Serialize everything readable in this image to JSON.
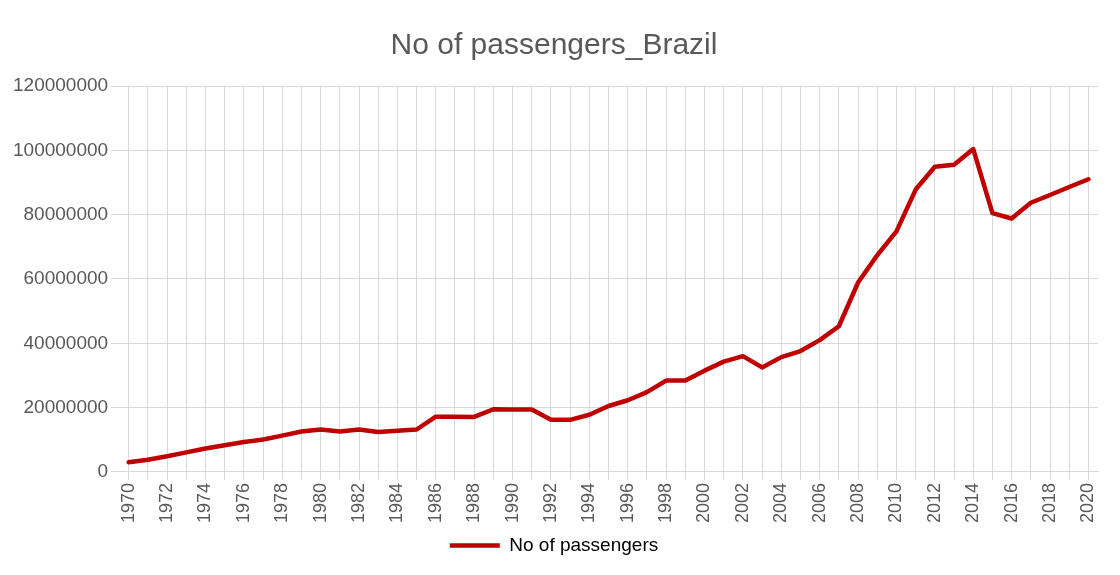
{
  "chart_data": {
    "type": "line",
    "title": "No of passengers_Brazil",
    "categories": [
      "1970",
      null,
      "1972",
      null,
      "1974",
      null,
      "1976",
      null,
      "1978",
      null,
      "1980",
      null,
      "1982",
      null,
      "1984",
      null,
      "1986",
      null,
      "1988",
      null,
      "1990",
      null,
      "1992",
      null,
      "1994",
      null,
      "1996",
      null,
      "1998",
      null,
      "2000",
      null,
      "2002",
      null,
      "2004",
      null,
      "2006",
      null,
      "2008",
      null,
      "2010",
      null,
      "2012",
      null,
      "2014",
      null,
      "2016",
      null,
      "2018",
      null,
      "2020"
    ],
    "series": [
      {
        "name": "No of passengers",
        "color": "#c00000",
        "values": [
          3000000,
          3800000,
          4900000,
          6100000,
          7300000,
          8300000,
          9300000,
          10100000,
          11300000,
          12600000,
          13200000,
          12600000,
          13200000,
          12400000,
          12800000,
          13200000,
          17200000,
          17200000,
          17100000,
          19500000,
          19400000,
          19400000,
          16200000,
          16200000,
          17800000,
          20500000,
          22300000,
          24800000,
          28400000,
          28400000,
          31500000,
          34300000,
          36000000,
          32500000,
          35700000,
          37600000,
          41000000,
          45300000,
          58900000,
          67400000,
          74800000,
          87800000,
          94900000,
          95500000,
          100400000,
          80500000,
          78800000,
          83700000,
          86100000,
          88600000,
          91000000
        ]
      }
    ],
    "ylim": [
      0,
      120000000
    ],
    "yticks": [
      0,
      20000000,
      40000000,
      60000000,
      80000000,
      100000000,
      120000000
    ],
    "grid": true,
    "legend": "bottom",
    "marker": "none",
    "line_style": "solid"
  }
}
